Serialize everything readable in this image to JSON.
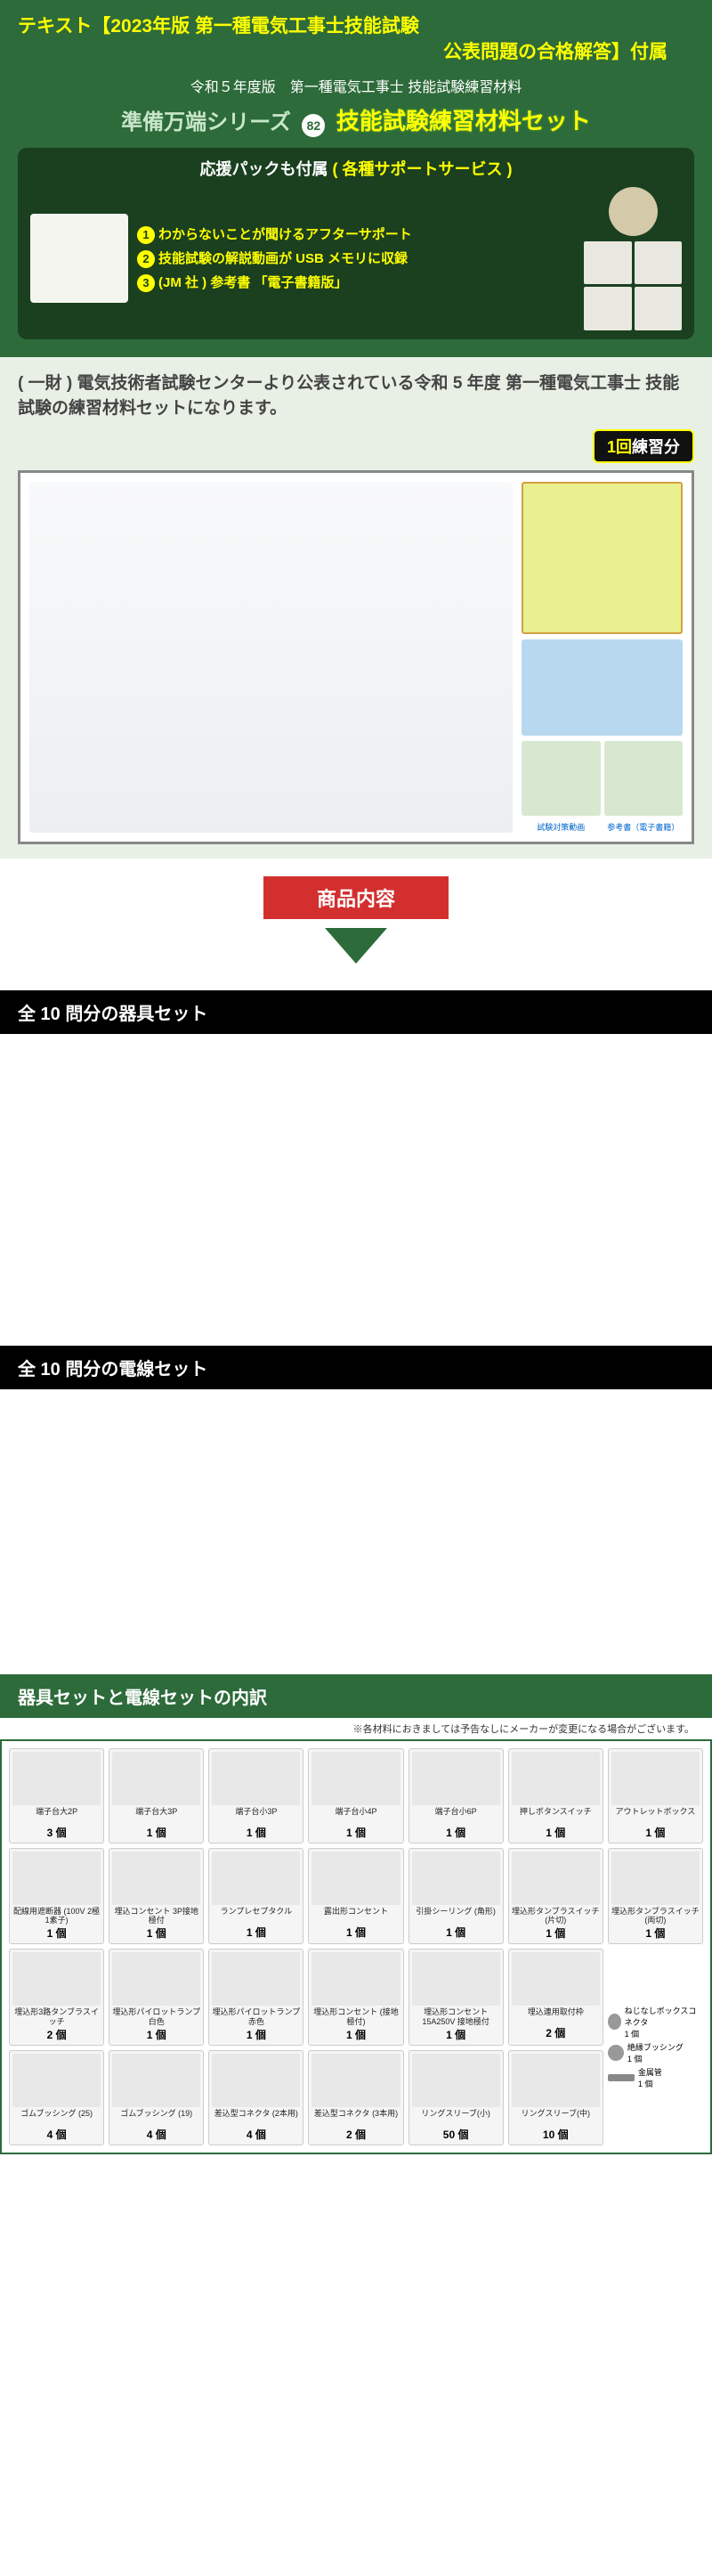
{
  "colors": {
    "headerBg": "#2d6b3a",
    "titleYellow": "#ffff00",
    "darkGreen": "#1a4020",
    "red": "#d32f2f",
    "black": "#000000",
    "white": "#ffffff"
  },
  "title1": "テキスト【2023年版 第一種電気工事士技能試験",
  "title2": "公表問題の合格解答】付属",
  "subtitle": "令和５年度版　第一種電気工事士 技能試験練習材料",
  "series_name": "準備万端シリーズ",
  "series_num": "82",
  "set_title": "技能試験練習材料セット",
  "support_title1": "応援パックも付属",
  "support_title2": "( 各種サポートサービス )",
  "support_items": [
    "わからないことが聞けるアフターサポート",
    "技能試験の解説動画が USB メモリに収録",
    "(JM 社 ) 参考書 「電子書籍版」"
  ],
  "desc": "( 一財 ) 電気技術者試験センターより公表されている令和 5 年度 第一種電気工事士 技能試験の練習材料セットになります。",
  "practice_num": "1回",
  "practice_text": "練習分",
  "ref_usb": "試験対策動画",
  "ref_book": "参考書（電子書籍）",
  "content_heading": "商品内容",
  "apparatus_heading": "全 10 問分の器具セット",
  "wire_heading": "全 10 問分の電線セット",
  "breakdown_heading": "器具セットと電線セットの内訳",
  "note": "※各材料におきましては予告なしにメーカーが変更になる場合がございます。",
  "grid_items": [
    {
      "name": "端子台大2P",
      "qty": "3 個"
    },
    {
      "name": "端子台大3P",
      "qty": "1 個"
    },
    {
      "name": "端子台小3P",
      "qty": "1 個"
    },
    {
      "name": "端子台小4P",
      "qty": "1 個"
    },
    {
      "name": "端子台小6P",
      "qty": "1 個"
    },
    {
      "name": "押しボタンスイッチ",
      "qty": "1 個"
    },
    {
      "name": "アウトレットボックス",
      "qty": "1 個"
    },
    {
      "name": "配線用遮断器 (100V 2極1素子)",
      "qty": "1 個"
    },
    {
      "name": "埋込コンセント 3P接地極付",
      "qty": "1 個"
    },
    {
      "name": "ランプレセプタクル",
      "qty": "1 個"
    },
    {
      "name": "露出形コンセント",
      "qty": "1 個"
    },
    {
      "name": "引掛シーリング (角形)",
      "qty": "1 個"
    },
    {
      "name": "埋込形タンブラスイッチ (片切)",
      "qty": "1 個"
    },
    {
      "name": "埋込形タンブラスイッチ (両切)",
      "qty": "1 個"
    },
    {
      "name": "埋込形3路タンブラスイッチ",
      "qty": "2 個"
    },
    {
      "name": "埋込形パイロットランプ 白色",
      "qty": "1 個"
    },
    {
      "name": "埋込形パイロットランプ 赤色",
      "qty": "1 個"
    },
    {
      "name": "埋込形コンセント (接地極付)",
      "qty": "1 個"
    },
    {
      "name": "埋込形コンセント 15A250V 接地極付",
      "qty": "1 個"
    },
    {
      "name": "埋込連用取付枠",
      "qty": "2 個"
    },
    {
      "name": "ゴムブッシング (25)",
      "qty": "4 個"
    },
    {
      "name": "ゴムブッシング (19)",
      "qty": "4 個"
    },
    {
      "name": "差込型コネクタ (2本用)",
      "qty": "4 個"
    },
    {
      "name": "差込型コネクタ (3本用)",
      "qty": "2 個"
    },
    {
      "name": "リングスリーブ(小)",
      "qty": "50 個"
    },
    {
      "name": "リングスリーブ(中)",
      "qty": "10 個"
    }
  ],
  "extra": [
    {
      "name": "ねじなしボックスコネクタ",
      "qty": "1 個"
    },
    {
      "name": "絶縁ブッシング",
      "qty": "1 個"
    },
    {
      "name": "金属管",
      "qty": "1 個"
    }
  ]
}
